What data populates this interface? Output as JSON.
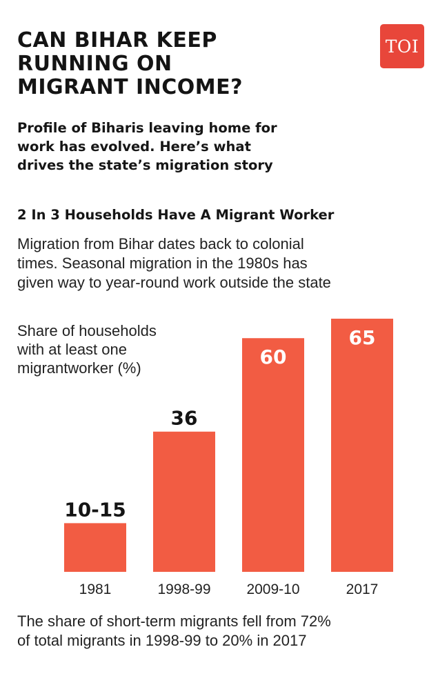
{
  "header": {
    "headline": "CAN BIHAR KEEP\nRUNNING ON\nMIGRANT INCOME?",
    "logo_text": "TOI",
    "subhead": "Profile of Biharis leaving home for\nwork has evolved. Here’s what\ndrives the state’s migration story"
  },
  "section": {
    "title": "2 In 3 Households Have A Migrant Worker",
    "description": "Migration from Bihar dates back to colonial\ntimes. Seasonal migration in the 1980s has\ngiven way to year-round work outside the state"
  },
  "footnote": "The share of short-term migrants fell from 72%\nof total migrants in 1998-99 to 20% in 2017",
  "colors": {
    "bar": "#f25c43",
    "logo_bg": "#e8463a",
    "inside_label": "#ffffff",
    "outside_label": "#141414"
  },
  "chart_data": {
    "type": "bar",
    "ylabel": "Share of households\nwith at least one\nmigrantworker (%)",
    "categories": [
      "1981",
      "1998-99",
      "2009-10",
      "2017"
    ],
    "values": [
      12.5,
      36,
      60,
      65
    ],
    "value_labels": [
      "10-15",
      "36",
      "60",
      "65"
    ],
    "ylim": [
      0,
      65
    ],
    "grid": false
  }
}
